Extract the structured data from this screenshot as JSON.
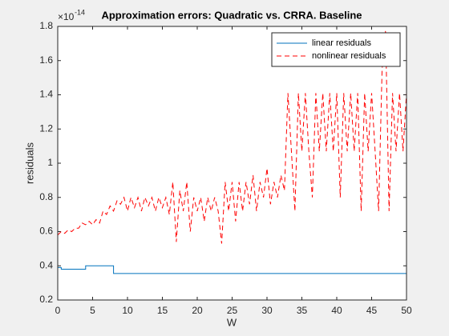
{
  "chart_data": {
    "type": "line",
    "title": "Approximation errors: Quadratic vs. CRRA. Baseline",
    "xlabel": "W",
    "ylabel": "residuals",
    "exponent_base": "×10",
    "exponent": "-14",
    "xlim": [
      0,
      50
    ],
    "xticks": [
      0,
      5,
      10,
      15,
      20,
      25,
      30,
      35,
      40,
      45,
      50
    ],
    "ylim": [
      0.2,
      1.8
    ],
    "yticks": [
      0.2,
      0.4,
      0.6,
      0.8,
      1,
      1.2,
      1.4,
      1.6,
      1.8
    ],
    "legend": "northeast",
    "grid": false,
    "series": [
      {
        "name": "linear residuals",
        "color": "#0072bd",
        "dash": "solid",
        "x": [
          0,
          0.5,
          0.5,
          4,
          4,
          8,
          8,
          50
        ],
        "values": [
          0.39,
          0.39,
          0.38,
          0.38,
          0.4,
          0.4,
          0.355,
          0.355
        ]
      },
      {
        "name": "nonlinear residuals",
        "color": "#ff0000",
        "dash": "dashed",
        "x": [
          0,
          0.5,
          1,
          1.5,
          2,
          2.5,
          3,
          3.5,
          4,
          4.5,
          5,
          5.5,
          6,
          6.5,
          7,
          7.5,
          8,
          8.5,
          9,
          9.5,
          10,
          10.5,
          11,
          11.5,
          12,
          12.5,
          13,
          13.5,
          14,
          14.5,
          15,
          15.5,
          16,
          16.5,
          17,
          17.5,
          18,
          18.5,
          19,
          19.5,
          20,
          20.5,
          21,
          21.5,
          22,
          22.5,
          23,
          23.5,
          24,
          24.5,
          25,
          25.5,
          26,
          26.5,
          27,
          27.5,
          28,
          28.5,
          29,
          29.5,
          30,
          30.5,
          31,
          31.5,
          32,
          32.5,
          33,
          33.5,
          34,
          34.5,
          35,
          35.5,
          36,
          36.5,
          37,
          37.5,
          38,
          38.5,
          39,
          39.5,
          40,
          40.5,
          41,
          41.5,
          42,
          42.5,
          43,
          43.5,
          44,
          44.5,
          45,
          45.5,
          46,
          46.5,
          47,
          47.5,
          48,
          48.5,
          49,
          49.5,
          50
        ],
        "values": [
          0.58,
          0.6,
          0.59,
          0.61,
          0.6,
          0.62,
          0.62,
          0.65,
          0.64,
          0.66,
          0.64,
          0.67,
          0.65,
          0.72,
          0.7,
          0.75,
          0.72,
          0.78,
          0.76,
          0.8,
          0.72,
          0.8,
          0.74,
          0.8,
          0.72,
          0.8,
          0.75,
          0.8,
          0.72,
          0.8,
          0.74,
          0.8,
          0.7,
          0.89,
          0.54,
          0.84,
          0.72,
          0.89,
          0.6,
          0.8,
          0.72,
          0.8,
          0.66,
          0.8,
          0.72,
          0.8,
          0.72,
          0.53,
          0.89,
          0.72,
          0.89,
          0.66,
          0.89,
          0.72,
          0.89,
          0.76,
          0.93,
          0.72,
          0.89,
          0.8,
          0.97,
          0.76,
          0.89,
          0.8,
          0.93,
          0.84,
          1.41,
          1.07,
          0.72,
          1.41,
          1.07,
          1.41,
          1.07,
          0.8,
          1.41,
          1.07,
          1.41,
          1.07,
          1.41,
          1.07,
          1.41,
          0.8,
          1.41,
          1.07,
          1.41,
          1.07,
          1.41,
          0.72,
          1.41,
          1.07,
          1.41,
          1.07,
          0.72,
          1.55,
          1.78,
          0.72,
          1.41,
          1.07,
          1.41,
          1.07,
          1.41
        ]
      }
    ]
  }
}
